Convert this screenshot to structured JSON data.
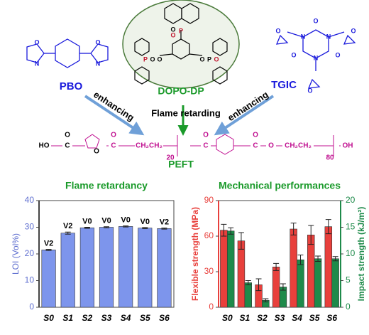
{
  "labels": {
    "pbo": "PBO",
    "dopo": "DOPO-DP",
    "tgic": "TGIC",
    "enhancing_left": "enhancing",
    "enhancing_right": "enhancing",
    "flame_retarding": "Flame retarding",
    "peft": "PEFT"
  },
  "atoms": {
    "pbo": [
      "N",
      "O",
      "O",
      "N"
    ],
    "dopo": [
      "O",
      "P",
      "O",
      "P",
      "O",
      "O",
      "P",
      "O",
      "O"
    ],
    "tgic": [
      "O",
      "N",
      "N",
      "O",
      "N",
      "O",
      "O",
      "O",
      "O"
    ]
  },
  "formula": [
    "HO",
    "C",
    "O",
    "O",
    "C",
    "O",
    "CH₂CH₂",
    "O",
    "C",
    "O",
    "C",
    "O",
    "CH₂CH₂",
    "OH",
    "20",
    "80"
  ],
  "chart_data": [
    {
      "type": "bar",
      "title": "Flame retardancy",
      "ylabel": "LOI (Vol%)",
      "categories": [
        "S0",
        "S1",
        "S2",
        "S3",
        "S4",
        "S5",
        "S6"
      ],
      "values": [
        21.5,
        27.8,
        29.8,
        30.0,
        30.3,
        29.7,
        29.5
      ],
      "errors": [
        0.2,
        0.4,
        0.2,
        0.2,
        0.2,
        0.2,
        0.2
      ],
      "ratings": [
        "V2",
        "V2",
        "V0",
        "V0",
        "V0",
        "V0",
        "V2"
      ],
      "color": "#7d95ec",
      "ylim": [
        0,
        40
      ],
      "yticks": [
        0,
        10,
        20,
        30,
        40
      ]
    },
    {
      "type": "bar",
      "title": "Mechanical performances",
      "ylabel": "Flexible strength (MPa)",
      "y2label": "Impact strength (kJ/m²)",
      "categories": [
        "S0",
        "S1",
        "S2",
        "S3",
        "S4",
        "S5",
        "S6"
      ],
      "series": [
        {
          "color": "#e8403c",
          "values": [
            65,
            56,
            19,
            34,
            66,
            61,
            68
          ],
          "errors": [
            5,
            7,
            5,
            3,
            5,
            8,
            6
          ]
        },
        {
          "color": "#1e8a4a",
          "axis": "y2",
          "values": [
            14.3,
            4.6,
            1.3,
            3.8,
            8.9,
            9.1,
            9.1
          ],
          "errors": [
            0.6,
            0.4,
            0.3,
            0.6,
            0.9,
            0.5,
            0.4
          ]
        }
      ],
      "ylim": [
        0,
        90
      ],
      "yticks": [
        0,
        30,
        60,
        90
      ],
      "y2lim": [
        0,
        20
      ],
      "y2ticks": [
        0,
        5,
        10,
        15,
        20
      ]
    }
  ]
}
